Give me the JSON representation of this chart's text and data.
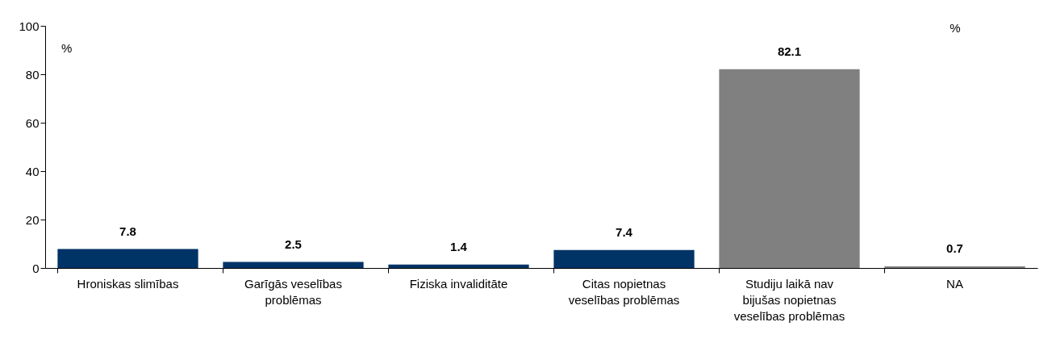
{
  "chart_data": {
    "type": "bar",
    "categories": [
      "Hroniskas slimības",
      "Garīgās veselības problēmas",
      "Fiziska invaliditāte",
      "Citas nopietnas veselības problēmas",
      "Studiju laikā nav bijušas nopietnas veselības problēmas",
      "NA"
    ],
    "values": [
      7.8,
      2.5,
      1.4,
      7.4,
      82.1,
      0.7
    ],
    "colors": [
      "#003366",
      "#003366",
      "#003366",
      "#003366",
      "#808080",
      "#808080"
    ],
    "ylabel": "%",
    "annotations": [
      "%"
    ],
    "ylim": [
      0,
      100
    ],
    "yticks": [
      0,
      20,
      40,
      60,
      80,
      100
    ],
    "grid": false,
    "data_labels": true
  }
}
